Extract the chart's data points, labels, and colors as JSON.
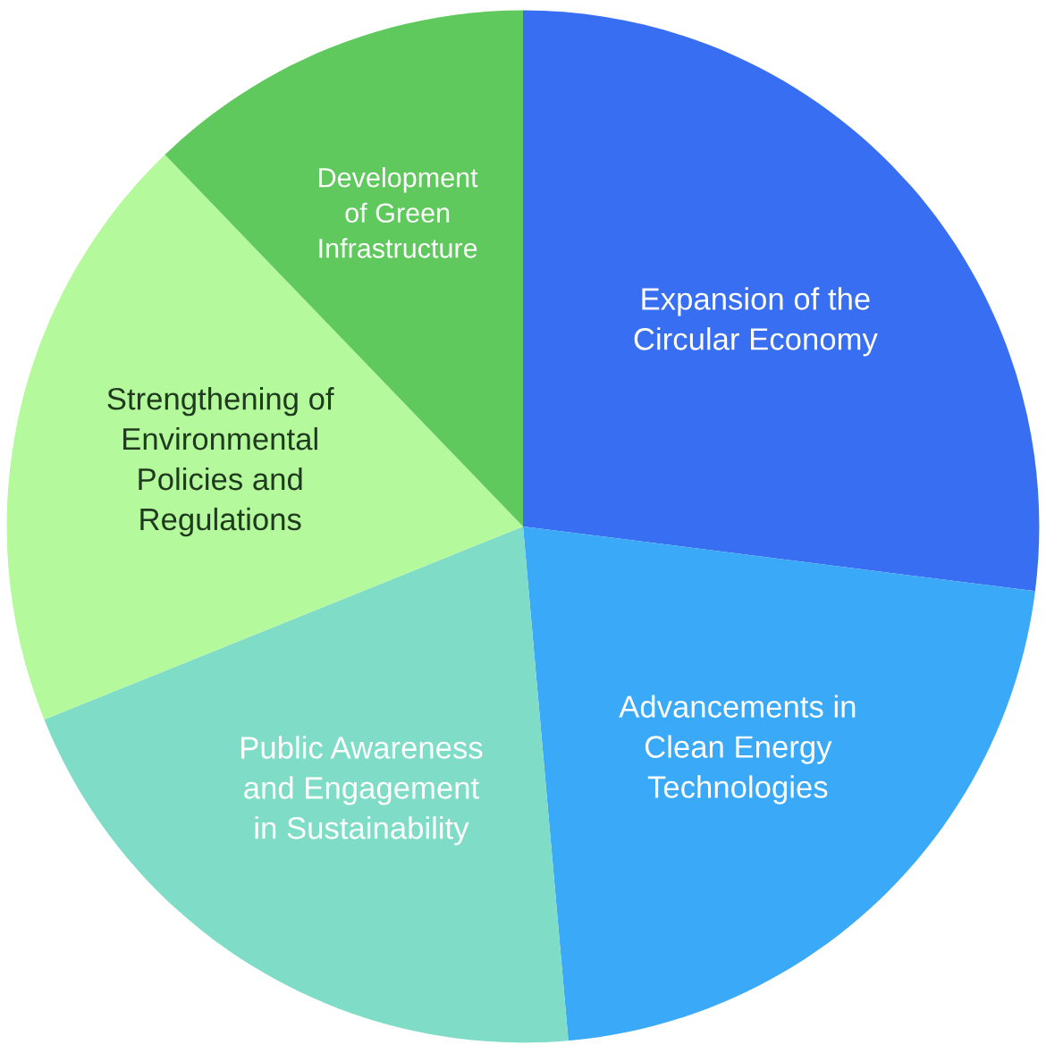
{
  "chart_data": {
    "type": "pie",
    "categories": [
      "Expansion of the\nCircular Economy",
      "Advancements in\nClean Energy\nTechnologies",
      "Public Awareness\nand Engagement\nin Sustainability",
      "Strengthening of\nEnvironmental\nPolicies and\nRegulations",
      "Development\nof Green\nInfrastructure"
    ],
    "values": [
      27,
      21.6,
      20.3,
      18.9,
      12.2
    ],
    "colors": [
      "#386ef2",
      "#3aa9f8",
      "#7fdcc6",
      "#b4f99b",
      "#60c95e"
    ]
  }
}
